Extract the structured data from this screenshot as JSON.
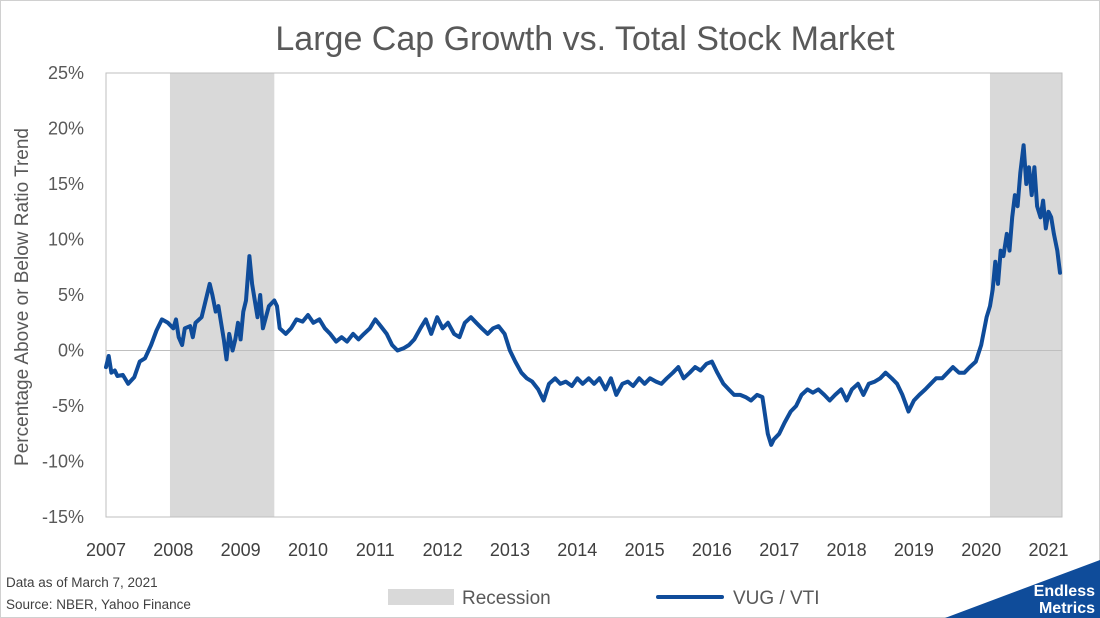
{
  "chart_data": {
    "type": "line",
    "title": "Large Cap Growth vs. Total Stock Market",
    "xlabel": "",
    "ylabel": "Percentage Above or Below Ratio Trend",
    "xlim": [
      2007.0,
      2021.2
    ],
    "ylim": [
      -15,
      25
    ],
    "x_ticks": [
      "2007",
      "2008",
      "2009",
      "2010",
      "2011",
      "2012",
      "2013",
      "2014",
      "2015",
      "2016",
      "2017",
      "2018",
      "2019",
      "2020",
      "2021"
    ],
    "y_ticks": [
      "25%",
      "20%",
      "15%",
      "10%",
      "5%",
      "0%",
      "-5%",
      "-10%",
      "-15%"
    ],
    "y_tick_values": [
      25,
      20,
      15,
      10,
      5,
      0,
      -5,
      -10,
      -15
    ],
    "legend": [
      "Recession",
      "VUG / VTI"
    ],
    "recessions": [
      {
        "start": 2007.95,
        "end": 2009.5
      },
      {
        "start": 2020.13,
        "end": 2021.2
      }
    ],
    "series": [
      {
        "name": "VUG / VTI",
        "color": "#0f4c9a",
        "points": [
          [
            2007.0,
            -1.5
          ],
          [
            2007.04,
            -0.5
          ],
          [
            2007.08,
            -2.0
          ],
          [
            2007.13,
            -1.8
          ],
          [
            2007.17,
            -2.3
          ],
          [
            2007.25,
            -2.2
          ],
          [
            2007.33,
            -3.0
          ],
          [
            2007.42,
            -2.4
          ],
          [
            2007.5,
            -1.0
          ],
          [
            2007.58,
            -0.7
          ],
          [
            2007.67,
            0.5
          ],
          [
            2007.75,
            1.8
          ],
          [
            2007.83,
            2.8
          ],
          [
            2007.92,
            2.5
          ],
          [
            2008.0,
            2.0
          ],
          [
            2008.04,
            2.8
          ],
          [
            2008.08,
            1.2
          ],
          [
            2008.13,
            0.5
          ],
          [
            2008.17,
            2.0
          ],
          [
            2008.25,
            2.2
          ],
          [
            2008.29,
            1.2
          ],
          [
            2008.33,
            2.5
          ],
          [
            2008.42,
            3.0
          ],
          [
            2008.5,
            5.0
          ],
          [
            2008.54,
            6.0
          ],
          [
            2008.58,
            5.0
          ],
          [
            2008.63,
            3.5
          ],
          [
            2008.67,
            4.0
          ],
          [
            2008.71,
            2.5
          ],
          [
            2008.75,
            1.0
          ],
          [
            2008.79,
            -0.8
          ],
          [
            2008.83,
            1.5
          ],
          [
            2008.88,
            0.0
          ],
          [
            2008.92,
            1.0
          ],
          [
            2008.96,
            2.5
          ],
          [
            2009.0,
            1.0
          ],
          [
            2009.04,
            3.5
          ],
          [
            2009.08,
            4.5
          ],
          [
            2009.13,
            8.5
          ],
          [
            2009.17,
            6.0
          ],
          [
            2009.21,
            4.5
          ],
          [
            2009.25,
            3.0
          ],
          [
            2009.29,
            5.0
          ],
          [
            2009.33,
            2.0
          ],
          [
            2009.42,
            4.0
          ],
          [
            2009.5,
            4.5
          ],
          [
            2009.54,
            4.0
          ],
          [
            2009.58,
            2.0
          ],
          [
            2009.67,
            1.5
          ],
          [
            2009.75,
            2.0
          ],
          [
            2009.83,
            2.8
          ],
          [
            2009.92,
            2.6
          ],
          [
            2010.0,
            3.2
          ],
          [
            2010.08,
            2.5
          ],
          [
            2010.17,
            2.8
          ],
          [
            2010.25,
            2.0
          ],
          [
            2010.33,
            1.5
          ],
          [
            2010.42,
            0.8
          ],
          [
            2010.5,
            1.2
          ],
          [
            2010.58,
            0.8
          ],
          [
            2010.67,
            1.5
          ],
          [
            2010.75,
            1.0
          ],
          [
            2010.83,
            1.5
          ],
          [
            2010.92,
            2.0
          ],
          [
            2011.0,
            2.8
          ],
          [
            2011.08,
            2.2
          ],
          [
            2011.17,
            1.5
          ],
          [
            2011.25,
            0.5
          ],
          [
            2011.33,
            0.0
          ],
          [
            2011.42,
            0.2
          ],
          [
            2011.5,
            0.5
          ],
          [
            2011.58,
            1.0
          ],
          [
            2011.67,
            2.0
          ],
          [
            2011.75,
            2.8
          ],
          [
            2011.83,
            1.5
          ],
          [
            2011.92,
            3.0
          ],
          [
            2012.0,
            2.0
          ],
          [
            2012.08,
            2.5
          ],
          [
            2012.17,
            1.5
          ],
          [
            2012.25,
            1.2
          ],
          [
            2012.33,
            2.5
          ],
          [
            2012.42,
            3.0
          ],
          [
            2012.5,
            2.5
          ],
          [
            2012.58,
            2.0
          ],
          [
            2012.67,
            1.5
          ],
          [
            2012.75,
            2.0
          ],
          [
            2012.83,
            2.2
          ],
          [
            2012.92,
            1.5
          ],
          [
            2013.0,
            0.0
          ],
          [
            2013.08,
            -1.0
          ],
          [
            2013.17,
            -2.0
          ],
          [
            2013.25,
            -2.5
          ],
          [
            2013.33,
            -2.8
          ],
          [
            2013.42,
            -3.5
          ],
          [
            2013.5,
            -4.5
          ],
          [
            2013.58,
            -3.0
          ],
          [
            2013.67,
            -2.5
          ],
          [
            2013.75,
            -3.0
          ],
          [
            2013.83,
            -2.8
          ],
          [
            2013.92,
            -3.2
          ],
          [
            2014.0,
            -2.5
          ],
          [
            2014.08,
            -3.0
          ],
          [
            2014.17,
            -2.5
          ],
          [
            2014.25,
            -3.0
          ],
          [
            2014.33,
            -2.5
          ],
          [
            2014.42,
            -3.5
          ],
          [
            2014.5,
            -2.5
          ],
          [
            2014.58,
            -4.0
          ],
          [
            2014.67,
            -3.0
          ],
          [
            2014.75,
            -2.8
          ],
          [
            2014.83,
            -3.2
          ],
          [
            2014.92,
            -2.5
          ],
          [
            2015.0,
            -3.0
          ],
          [
            2015.08,
            -2.5
          ],
          [
            2015.17,
            -2.8
          ],
          [
            2015.25,
            -3.0
          ],
          [
            2015.33,
            -2.5
          ],
          [
            2015.42,
            -2.0
          ],
          [
            2015.5,
            -1.5
          ],
          [
            2015.58,
            -2.5
          ],
          [
            2015.67,
            -2.0
          ],
          [
            2015.75,
            -1.5
          ],
          [
            2015.83,
            -1.8
          ],
          [
            2015.92,
            -1.2
          ],
          [
            2016.0,
            -1.0
          ],
          [
            2016.08,
            -2.0
          ],
          [
            2016.17,
            -3.0
          ],
          [
            2016.25,
            -3.5
          ],
          [
            2016.33,
            -4.0
          ],
          [
            2016.42,
            -4.0
          ],
          [
            2016.5,
            -4.2
          ],
          [
            2016.58,
            -4.5
          ],
          [
            2016.67,
            -4.0
          ],
          [
            2016.75,
            -4.2
          ],
          [
            2016.83,
            -7.5
          ],
          [
            2016.88,
            -8.5
          ],
          [
            2016.92,
            -8.0
          ],
          [
            2017.0,
            -7.5
          ],
          [
            2017.08,
            -6.5
          ],
          [
            2017.17,
            -5.5
          ],
          [
            2017.25,
            -5.0
          ],
          [
            2017.33,
            -4.0
          ],
          [
            2017.42,
            -3.5
          ],
          [
            2017.5,
            -3.8
          ],
          [
            2017.58,
            -3.5
          ],
          [
            2017.67,
            -4.0
          ],
          [
            2017.75,
            -4.5
          ],
          [
            2017.83,
            -4.0
          ],
          [
            2017.92,
            -3.5
          ],
          [
            2018.0,
            -4.5
          ],
          [
            2018.08,
            -3.5
          ],
          [
            2018.17,
            -3.0
          ],
          [
            2018.25,
            -4.0
          ],
          [
            2018.33,
            -3.0
          ],
          [
            2018.42,
            -2.8
          ],
          [
            2018.5,
            -2.5
          ],
          [
            2018.58,
            -2.0
          ],
          [
            2018.67,
            -2.5
          ],
          [
            2018.75,
            -3.0
          ],
          [
            2018.83,
            -4.0
          ],
          [
            2018.92,
            -5.5
          ],
          [
            2019.0,
            -4.5
          ],
          [
            2019.08,
            -4.0
          ],
          [
            2019.17,
            -3.5
          ],
          [
            2019.25,
            -3.0
          ],
          [
            2019.33,
            -2.5
          ],
          [
            2019.42,
            -2.5
          ],
          [
            2019.5,
            -2.0
          ],
          [
            2019.58,
            -1.5
          ],
          [
            2019.67,
            -2.0
          ],
          [
            2019.75,
            -2.0
          ],
          [
            2019.83,
            -1.5
          ],
          [
            2019.92,
            -1.0
          ],
          [
            2020.0,
            0.5
          ],
          [
            2020.08,
            3.0
          ],
          [
            2020.13,
            4.0
          ],
          [
            2020.17,
            5.5
          ],
          [
            2020.21,
            8.0
          ],
          [
            2020.25,
            6.0
          ],
          [
            2020.29,
            9.0
          ],
          [
            2020.33,
            8.5
          ],
          [
            2020.38,
            10.5
          ],
          [
            2020.42,
            9.0
          ],
          [
            2020.46,
            12.0
          ],
          [
            2020.5,
            14.0
          ],
          [
            2020.54,
            13.0
          ],
          [
            2020.58,
            16.0
          ],
          [
            2020.63,
            18.5
          ],
          [
            2020.67,
            15.0
          ],
          [
            2020.71,
            16.5
          ],
          [
            2020.75,
            14.0
          ],
          [
            2020.79,
            16.5
          ],
          [
            2020.83,
            13.0
          ],
          [
            2020.88,
            12.0
          ],
          [
            2020.92,
            13.5
          ],
          [
            2020.96,
            11.0
          ],
          [
            2021.0,
            12.5
          ],
          [
            2021.04,
            12.0
          ],
          [
            2021.08,
            10.5
          ],
          [
            2021.13,
            9.0
          ],
          [
            2021.17,
            7.0
          ]
        ]
      }
    ]
  },
  "footer": {
    "note_date": "Data as of March 7, 2021",
    "note_source": "Source: NBER, Yahoo Finance"
  },
  "logo": {
    "line1": "Endless",
    "line2": "Metrics"
  },
  "colors": {
    "line": "#0f4c9a",
    "recession": "#d9d9d9",
    "zero_line": "#bfbfbf",
    "logo_bg": "#0f4c9a"
  }
}
